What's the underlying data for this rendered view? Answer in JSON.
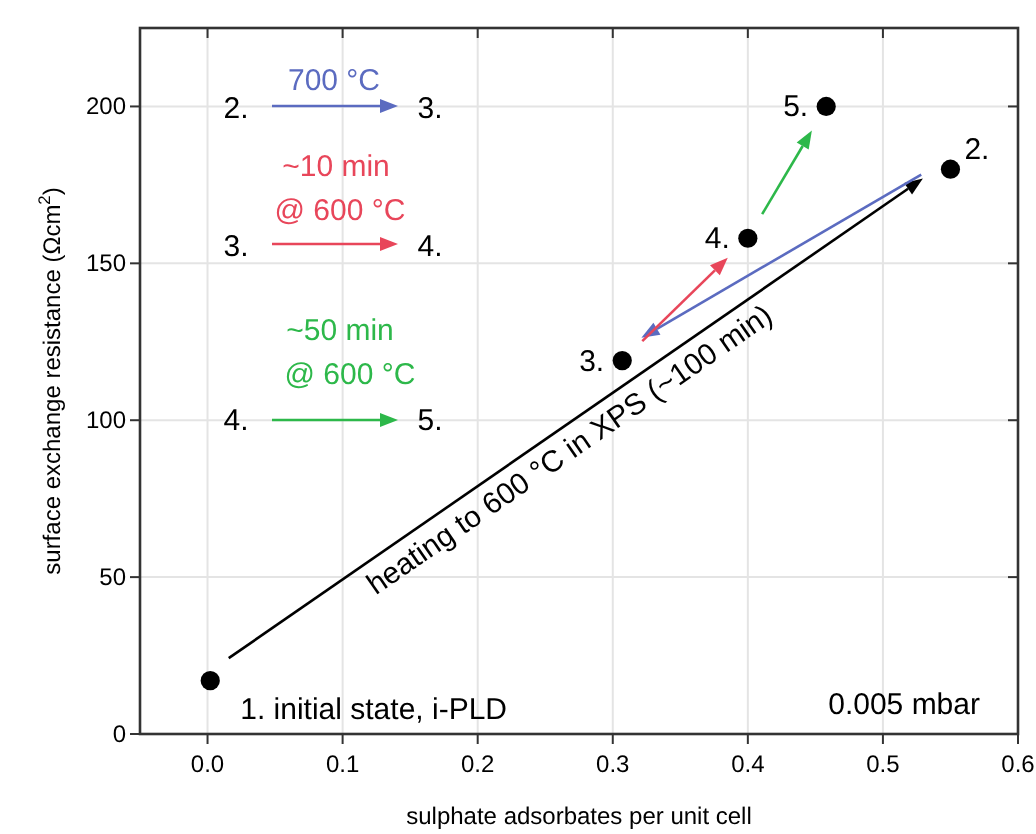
{
  "chart_data": {
    "type": "scatter",
    "xlabel": "sulphate adsorbates per unit cell",
    "ylabel": "surface exchange resistance (Ωcm$^{2}$)",
    "x": [
      0.002,
      0.55,
      0.307,
      0.4,
      0.458
    ],
    "series": [
      {
        "color": "#000000",
        "values": [
          17,
          180,
          119,
          158,
          200
        ]
      }
    ],
    "xlim": [
      -0.05,
      0.6
    ],
    "ylim": [
      0,
      225
    ],
    "xticks": [
      {
        "value": 0,
        "label": "0.0"
      },
      0.1,
      0.2,
      0.3,
      0.4,
      0.5,
      0.6
    ],
    "yticks": [
      0,
      50,
      100,
      150,
      200
    ],
    "grid": true,
    "marker": "circle",
    "annotations": [
      {
        "text": "1. initial state, i-PLD",
        "x": 0.002,
        "y": 17
      },
      {
        "text": "2.",
        "x": 0.55,
        "y": 180
      },
      {
        "text": "3.",
        "x": 0.307,
        "y": 119
      },
      {
        "text": "4.",
        "x": 0.4,
        "y": 158
      },
      {
        "text": "5.",
        "x": 0.458,
        "y": 200
      },
      "heating to 600 °C in XPS (~100 min)",
      "0.005 mbar",
      "700 °C",
      "2.",
      "3.",
      "~10 min",
      "@ 600 °C",
      "3.",
      "4.",
      "~50 min",
      "@ 600 °C",
      "4.",
      "5."
    ]
  }
}
